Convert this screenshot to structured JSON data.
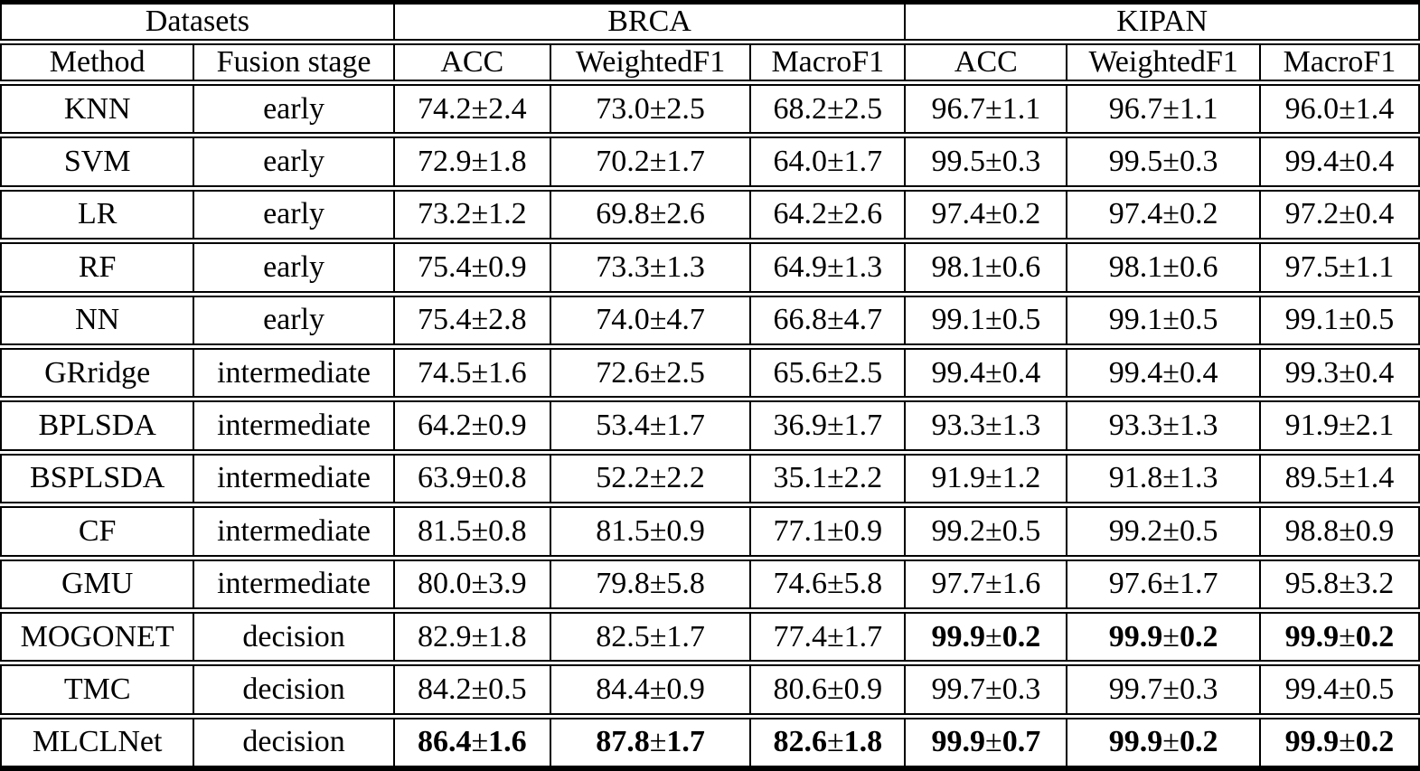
{
  "table": {
    "datasets_label": "Datasets",
    "groups": [
      "BRCA",
      "KIPAN"
    ],
    "columns": [
      "Method",
      "Fusion stage",
      "ACC",
      "WeightedF1",
      "MacroF1",
      "ACC",
      "WeightedF1",
      "MacroF1"
    ],
    "plus_minus": "±",
    "rows": [
      {
        "method": "KNN",
        "fusion_stage": "early",
        "values": [
          "74.2±2.4",
          "73.0±2.5",
          "68.2±2.5",
          "96.7±1.1",
          "96.7±1.1",
          "96.0±1.4"
        ],
        "bold": [
          false,
          false,
          false,
          false,
          false,
          false
        ]
      },
      {
        "method": "SVM",
        "fusion_stage": "early",
        "values": [
          "72.9±1.8",
          "70.2±1.7",
          "64.0±1.7",
          "99.5±0.3",
          "99.5±0.3",
          "99.4±0.4"
        ],
        "bold": [
          false,
          false,
          false,
          false,
          false,
          false
        ]
      },
      {
        "method": "LR",
        "fusion_stage": "early",
        "values": [
          "73.2±1.2",
          "69.8±2.6",
          "64.2±2.6",
          "97.4±0.2",
          "97.4±0.2",
          "97.2±0.4"
        ],
        "bold": [
          false,
          false,
          false,
          false,
          false,
          false
        ]
      },
      {
        "method": "RF",
        "fusion_stage": "early",
        "values": [
          "75.4±0.9",
          "73.3±1.3",
          "64.9±1.3",
          "98.1±0.6",
          "98.1±0.6",
          "97.5±1.1"
        ],
        "bold": [
          false,
          false,
          false,
          false,
          false,
          false
        ]
      },
      {
        "method": "NN",
        "fusion_stage": "early",
        "values": [
          "75.4±2.8",
          "74.0±4.7",
          "66.8±4.7",
          "99.1±0.5",
          "99.1±0.5",
          "99.1±0.5"
        ],
        "bold": [
          false,
          false,
          false,
          false,
          false,
          false
        ]
      },
      {
        "method": "GRridge",
        "fusion_stage": "intermediate",
        "values": [
          "74.5±1.6",
          "72.6±2.5",
          "65.6±2.5",
          "99.4±0.4",
          "99.4±0.4",
          "99.3±0.4"
        ],
        "bold": [
          false,
          false,
          false,
          false,
          false,
          false
        ]
      },
      {
        "method": "BPLSDA",
        "fusion_stage": "intermediate",
        "values": [
          "64.2±0.9",
          "53.4±1.7",
          "36.9±1.7",
          "93.3±1.3",
          "93.3±1.3",
          "91.9±2.1"
        ],
        "bold": [
          false,
          false,
          false,
          false,
          false,
          false
        ]
      },
      {
        "method": "BSPLSDA",
        "fusion_stage": "intermediate",
        "values": [
          "63.9±0.8",
          "52.2±2.2",
          "35.1±2.2",
          "91.9±1.2",
          "91.8±1.3",
          "89.5±1.4"
        ],
        "bold": [
          false,
          false,
          false,
          false,
          false,
          false
        ]
      },
      {
        "method": "CF",
        "fusion_stage": "intermediate",
        "values": [
          "81.5±0.8",
          "81.5±0.9",
          "77.1±0.9",
          "99.2±0.5",
          "99.2±0.5",
          "98.8±0.9"
        ],
        "bold": [
          false,
          false,
          false,
          false,
          false,
          false
        ]
      },
      {
        "method": "GMU",
        "fusion_stage": "intermediate",
        "values": [
          "80.0±3.9",
          "79.8±5.8",
          "74.6±5.8",
          "97.7±1.6",
          "97.6±1.7",
          "95.8±3.2"
        ],
        "bold": [
          false,
          false,
          false,
          false,
          false,
          false
        ]
      },
      {
        "method": "MOGONET",
        "fusion_stage": "decision",
        "values": [
          "82.9±1.8",
          "82.5±1.7",
          "77.4±1.7",
          "99.9±0.2",
          "99.9±0.2",
          "99.9±0.2"
        ],
        "bold": [
          false,
          false,
          false,
          true,
          true,
          true
        ]
      },
      {
        "method": "TMC",
        "fusion_stage": "decision",
        "values": [
          "84.2±0.5",
          "84.4±0.9",
          "80.6±0.9",
          "99.7±0.3",
          "99.7±0.3",
          "99.4±0.5"
        ],
        "bold": [
          false,
          false,
          false,
          false,
          false,
          false
        ]
      },
      {
        "method": "MLCLNet",
        "fusion_stage": "decision",
        "values": [
          "86.4±1.6",
          "87.8±1.7",
          "82.6±1.8",
          "99.9±0.7",
          "99.9±0.2",
          "99.9±0.2"
        ],
        "bold": [
          true,
          true,
          true,
          true,
          true,
          true
        ]
      }
    ]
  },
  "colors": {
    "text": "#000000",
    "background": "#ffffff",
    "border": "#000000"
  }
}
